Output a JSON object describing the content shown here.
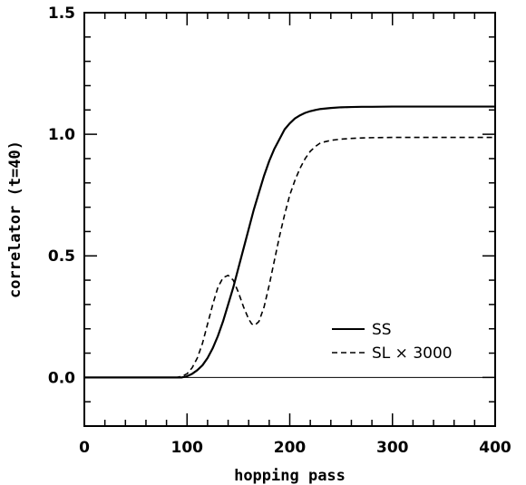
{
  "chart_data": {
    "type": "line",
    "xlabel": "hopping pass",
    "ylabel": "correlator (t=40)",
    "xlim": [
      0,
      400
    ],
    "ylim": [
      -0.2,
      1.5
    ],
    "x_ticks": [
      "0",
      "100",
      "200",
      "300",
      "400"
    ],
    "y_ticks": [
      "0.0",
      "0.5",
      "1.0",
      "1.5"
    ],
    "grid": false,
    "legend_position": "bottom-right",
    "series": [
      {
        "name": "SS",
        "style": "solid",
        "x": [
          0,
          20,
          40,
          60,
          80,
          95,
          100,
          105,
          110,
          115,
          120,
          125,
          130,
          135,
          140,
          145,
          150,
          155,
          160,
          165,
          170,
          175,
          180,
          185,
          190,
          195,
          200,
          205,
          210,
          215,
          220,
          225,
          230,
          240,
          250,
          260,
          270,
          280,
          300,
          320,
          340,
          360,
          380,
          400
        ],
        "y": [
          0.0,
          0.0,
          0.0,
          0.0,
          0.0,
          0.0,
          0.005,
          0.015,
          0.03,
          0.05,
          0.08,
          0.12,
          0.17,
          0.23,
          0.3,
          0.37,
          0.45,
          0.53,
          0.61,
          0.69,
          0.76,
          0.83,
          0.89,
          0.94,
          0.98,
          1.02,
          1.045,
          1.065,
          1.078,
          1.088,
          1.095,
          1.1,
          1.104,
          1.108,
          1.111,
          1.112,
          1.113,
          1.113,
          1.114,
          1.114,
          1.114,
          1.114,
          1.114,
          1.114
        ]
      },
      {
        "name": "SL × 3000",
        "style": "dashed",
        "x": [
          0,
          20,
          40,
          60,
          80,
          90,
          95,
          100,
          105,
          110,
          115,
          120,
          125,
          130,
          135,
          140,
          145,
          150,
          155,
          160,
          163,
          166,
          170,
          175,
          180,
          185,
          190,
          195,
          200,
          205,
          210,
          215,
          220,
          225,
          230,
          240,
          250,
          260,
          270,
          280,
          300,
          320,
          340,
          360,
          380,
          400
        ],
        "y": [
          0.0,
          0.0,
          0.0,
          0.0,
          0.0,
          0.0,
          0.005,
          0.015,
          0.04,
          0.08,
          0.14,
          0.22,
          0.3,
          0.37,
          0.41,
          0.42,
          0.4,
          0.35,
          0.29,
          0.24,
          0.22,
          0.215,
          0.23,
          0.29,
          0.38,
          0.48,
          0.58,
          0.67,
          0.75,
          0.81,
          0.86,
          0.9,
          0.93,
          0.95,
          0.965,
          0.975,
          0.98,
          0.983,
          0.985,
          0.986,
          0.987,
          0.987,
          0.987,
          0.987,
          0.987,
          0.987
        ]
      }
    ]
  }
}
